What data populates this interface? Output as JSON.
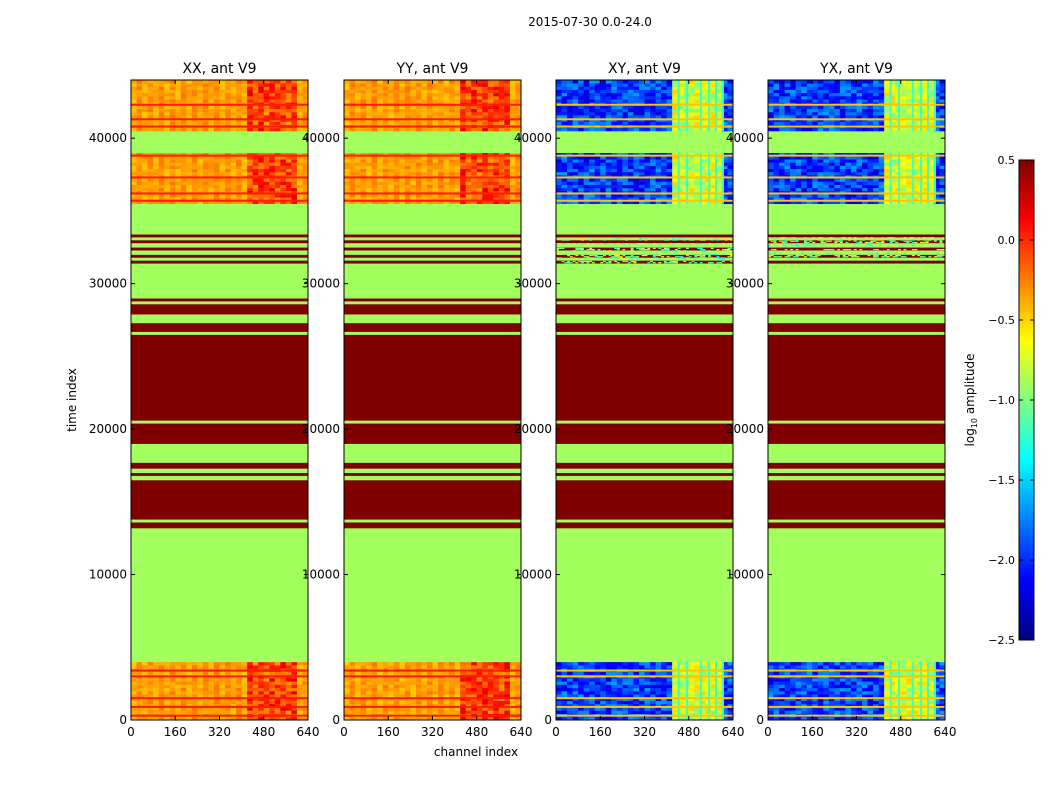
{
  "figure": {
    "suptitle": "2015-07-30 0.0-24.0"
  },
  "chart_data": {
    "type": "heatmap",
    "xlabel": "channel index",
    "ylabel": "time index",
    "xlim": [
      0,
      640
    ],
    "ylim": [
      0,
      44000
    ],
    "x_ticks": [
      0,
      160,
      320,
      480,
      640
    ],
    "x_tick_labels": [
      "0",
      "160",
      "320",
      "480",
      "640"
    ],
    "y_ticks": [
      0,
      10000,
      20000,
      30000,
      40000
    ],
    "y_tick_labels": [
      "0",
      "10000",
      "20000",
      "30000",
      "40000"
    ],
    "panels": [
      {
        "title": "XX, ant V9",
        "polarization": "XX",
        "variant": "parallel"
      },
      {
        "title": "YY, ant V9",
        "polarization": "YY",
        "variant": "parallel"
      },
      {
        "title": "XY, ant V9",
        "polarization": "XY",
        "variant": "cross"
      },
      {
        "title": "YX, ant V9",
        "polarization": "YX",
        "variant": "cross"
      }
    ],
    "colorbar": {
      "label": "log10 amplitude",
      "label_main": "log",
      "label_sub": "10",
      "label_rest": " amplitude",
      "colormap": "jet",
      "range": [
        -2.5,
        0.5
      ],
      "ticks": [
        0.5,
        0.0,
        -0.5,
        -1.0,
        -1.5,
        -2.0,
        -2.5
      ],
      "tick_labels": [
        "0.5",
        "0.0",
        "−0.5",
        "−1.0",
        "−1.5",
        "−2.0",
        "−2.5"
      ]
    },
    "flagged_value": -0.9,
    "bands": [
      {
        "t0": 0,
        "t1": 4000,
        "kind": "data"
      },
      {
        "t0": 4000,
        "t1": 13200,
        "kind": "flag"
      },
      {
        "t0": 13200,
        "t1": 13600,
        "kind": "high"
      },
      {
        "t0": 13600,
        "t1": 13800,
        "kind": "flag"
      },
      {
        "t0": 13800,
        "t1": 16500,
        "kind": "high"
      },
      {
        "t0": 16500,
        "t1": 16800,
        "kind": "flag"
      },
      {
        "t0": 16800,
        "t1": 17000,
        "kind": "high"
      },
      {
        "t0": 17000,
        "t1": 17300,
        "kind": "flag"
      },
      {
        "t0": 17300,
        "t1": 17700,
        "kind": "high"
      },
      {
        "t0": 17700,
        "t1": 19000,
        "kind": "flag"
      },
      {
        "t0": 19000,
        "t1": 20400,
        "kind": "high"
      },
      {
        "t0": 20400,
        "t1": 20600,
        "kind": "flag"
      },
      {
        "t0": 20600,
        "t1": 26500,
        "kind": "high"
      },
      {
        "t0": 26500,
        "t1": 26700,
        "kind": "flag"
      },
      {
        "t0": 26700,
        "t1": 27300,
        "kind": "high"
      },
      {
        "t0": 27300,
        "t1": 27900,
        "kind": "flag"
      },
      {
        "t0": 27900,
        "t1": 28600,
        "kind": "high"
      },
      {
        "t0": 28600,
        "t1": 28800,
        "kind": "flag"
      },
      {
        "t0": 28800,
        "t1": 29000,
        "kind": "high"
      },
      {
        "t0": 29000,
        "t1": 31400,
        "kind": "flag"
      },
      {
        "t0": 31400,
        "t1": 31600,
        "kind": "high"
      },
      {
        "t0": 31600,
        "t1": 31800,
        "kind": "flag"
      },
      {
        "t0": 31800,
        "t1": 32000,
        "kind": "high"
      },
      {
        "t0": 32000,
        "t1": 32300,
        "kind": "flag"
      },
      {
        "t0": 32300,
        "t1": 32500,
        "kind": "high"
      },
      {
        "t0": 32500,
        "t1": 32800,
        "kind": "flag"
      },
      {
        "t0": 32800,
        "t1": 33000,
        "kind": "high"
      },
      {
        "t0": 33000,
        "t1": 33200,
        "kind": "flag"
      },
      {
        "t0": 33200,
        "t1": 33400,
        "kind": "high"
      },
      {
        "t0": 33400,
        "t1": 35500,
        "kind": "flag"
      },
      {
        "t0": 35500,
        "t1": 39000,
        "kind": "data"
      },
      {
        "t0": 39000,
        "t1": 40500,
        "kind": "flag"
      },
      {
        "t0": 40500,
        "t1": 44000,
        "kind": "data"
      }
    ],
    "cross_noise_band": [
      31400,
      33200
    ],
    "stripe_times": [
      300,
      900,
      1500,
      3000,
      3400,
      35700,
      36200,
      37300,
      38800,
      40800,
      41300,
      42300
    ],
    "rfi_channel_range": [
      420,
      600
    ],
    "rfi_lines": [
      440,
      470,
      520,
      550,
      575,
      600
    ]
  }
}
